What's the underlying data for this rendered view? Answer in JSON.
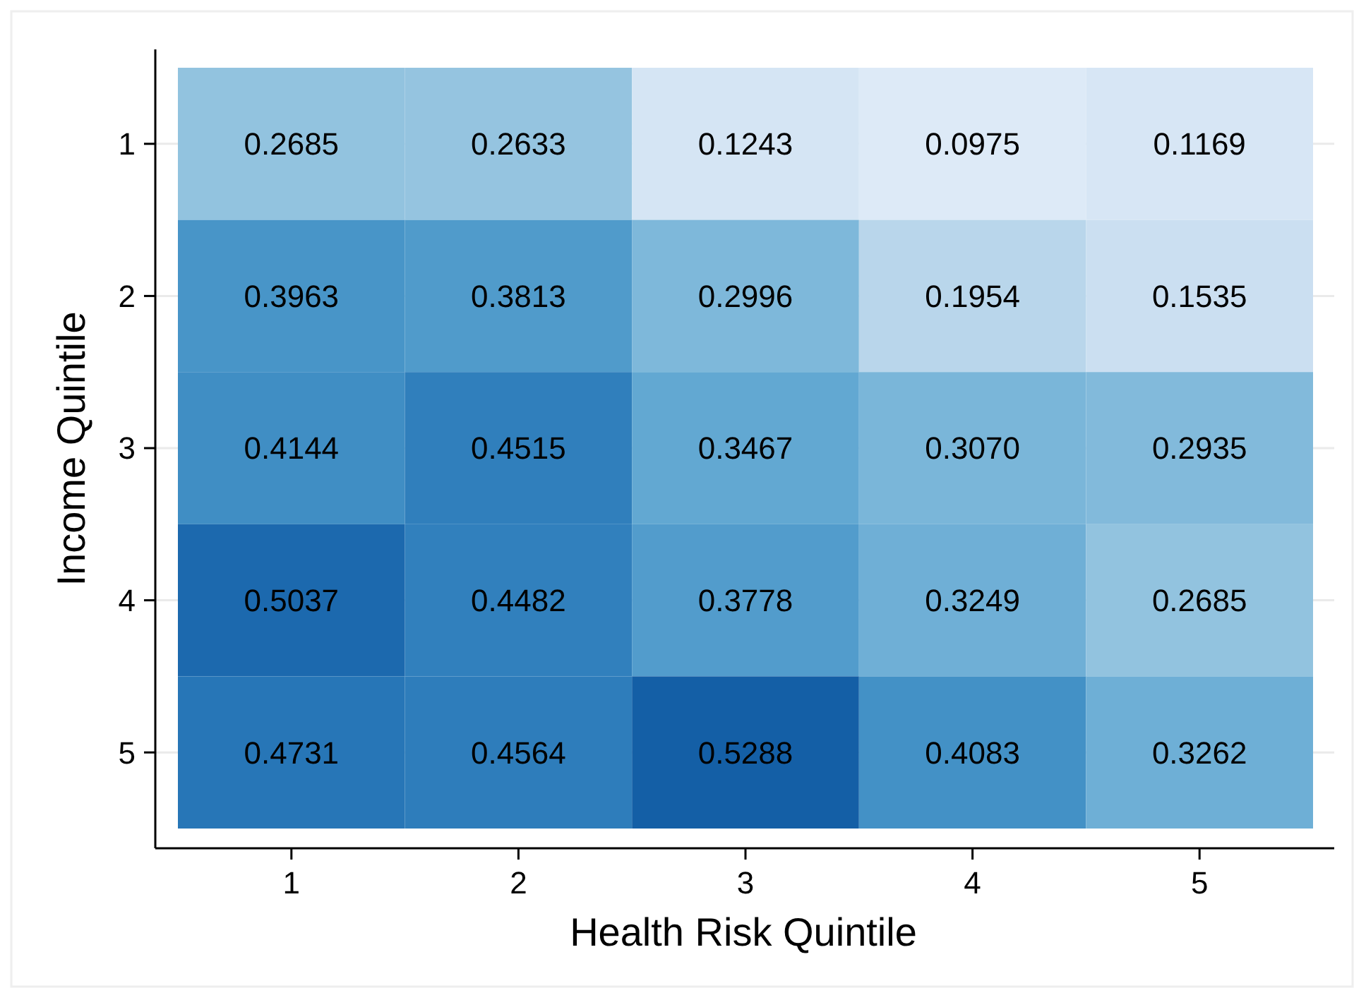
{
  "chart_data": {
    "type": "heatmap",
    "xlabel": "Health Risk Quintile",
    "ylabel": "Income Quintile",
    "categories": [
      "1",
      "2",
      "3",
      "4",
      "5"
    ],
    "y_categories": [
      "1",
      "2",
      "3",
      "4",
      "5"
    ],
    "cells": [
      [
        0.2685,
        0.2633,
        0.1243,
        0.0975,
        0.1169
      ],
      [
        0.3963,
        0.3813,
        0.2996,
        0.1954,
        0.1535
      ],
      [
        0.4144,
        0.4515,
        0.3467,
        0.307,
        0.2935
      ],
      [
        0.5037,
        0.4482,
        0.3778,
        0.3249,
        0.2685
      ],
      [
        0.4731,
        0.4564,
        0.5288,
        0.4083,
        0.3262
      ]
    ],
    "cell_labels": [
      [
        "0.2685",
        "0.2633",
        "0.1243",
        "0.0975",
        "0.1169"
      ],
      [
        "0.3963",
        "0.3813",
        "0.2996",
        "0.1954",
        "0.1535"
      ],
      [
        "0.4144",
        "0.4515",
        "0.3467",
        "0.3070",
        "0.2935"
      ],
      [
        "0.5037",
        "0.4482",
        "0.3778",
        "0.3249",
        "0.2685"
      ],
      [
        "0.4731",
        "0.4564",
        "0.5288",
        "0.4083",
        "0.3262"
      ]
    ],
    "grid": "y"
  }
}
